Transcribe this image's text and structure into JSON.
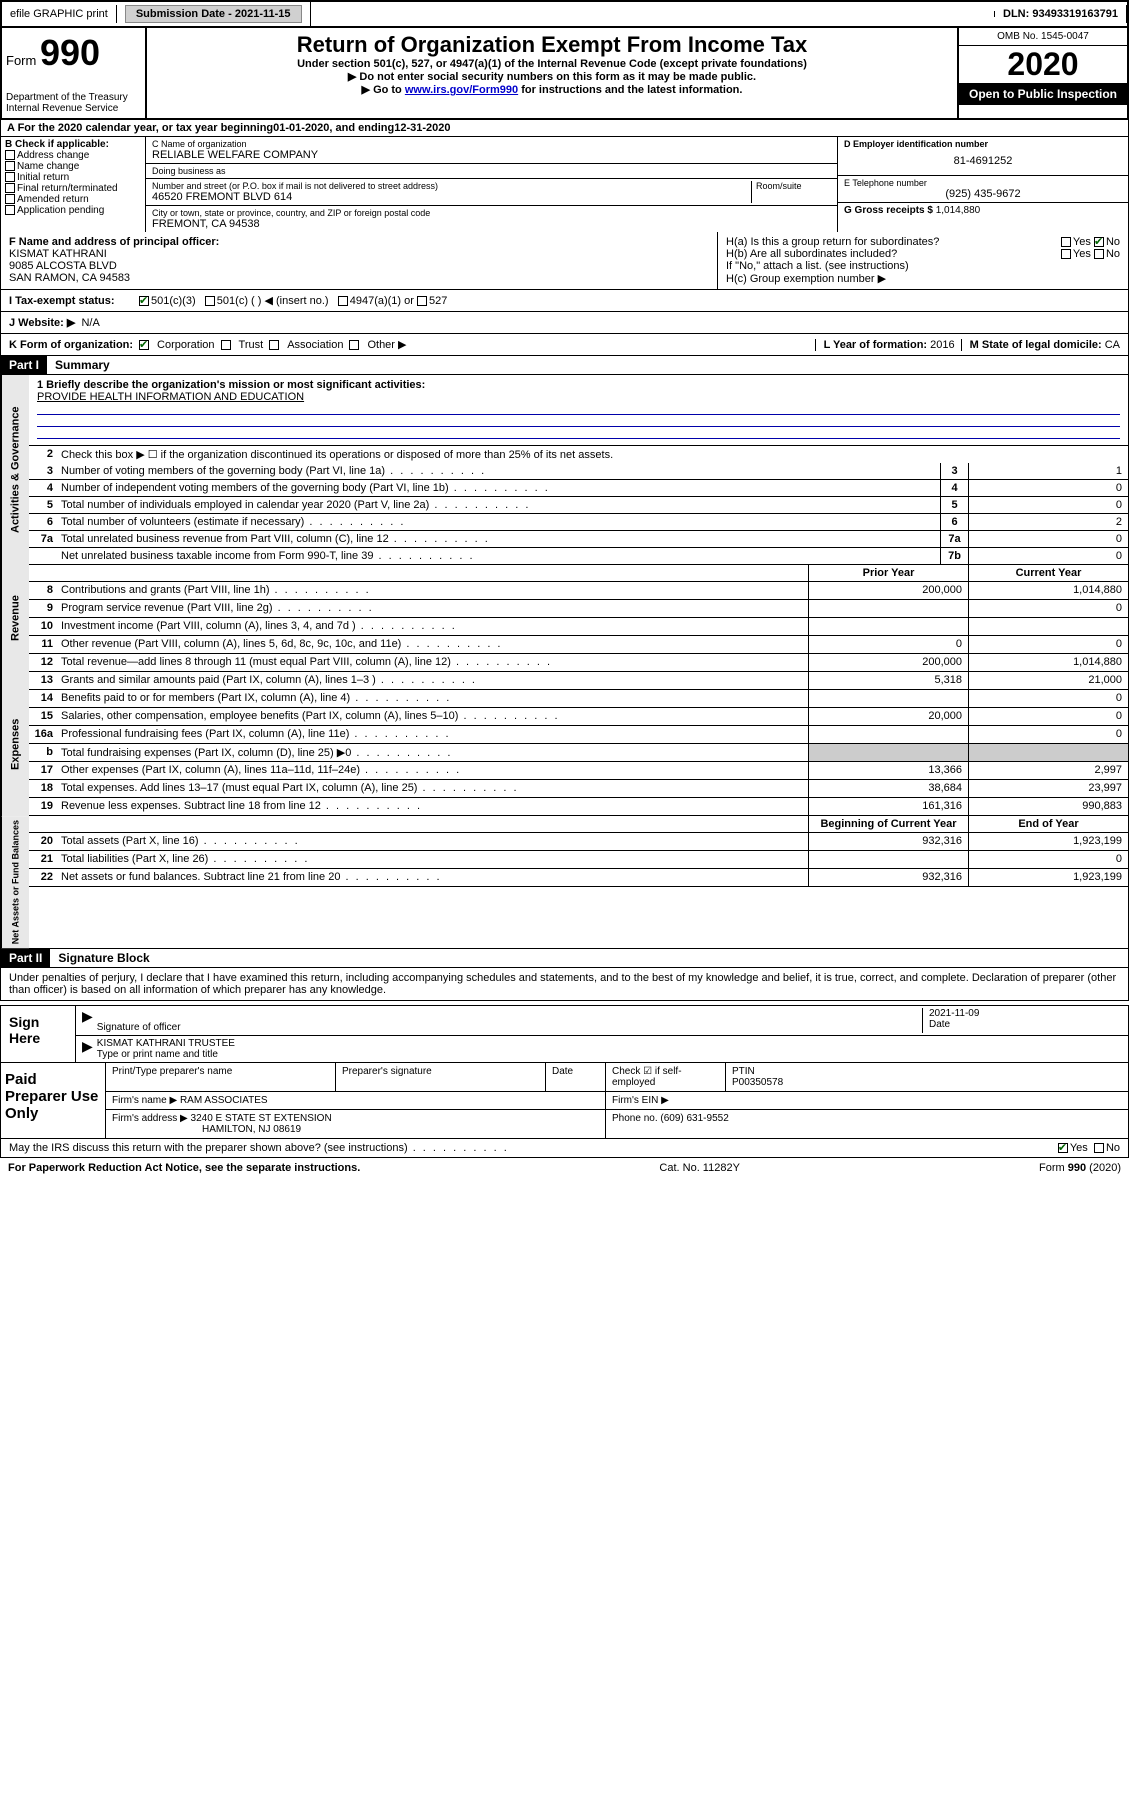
{
  "topbar": {
    "efile": "efile GRAPHIC print",
    "submission_label": "Submission Date - ",
    "submission_date": "2021-11-15",
    "dln_label": "DLN: ",
    "dln": "93493319163791"
  },
  "header": {
    "form_prefix": "Form",
    "form_num": "990",
    "dept": "Department of the Treasury",
    "irs": "Internal Revenue Service",
    "title": "Return of Organization Exempt From Income Tax",
    "sub1": "Under section 501(c), 527, or 4947(a)(1) of the Internal Revenue Code (except private foundations)",
    "sub2": "▶ Do not enter social security numbers on this form as it may be made public.",
    "sub3_pre": "▶ Go to ",
    "sub3_link": "www.irs.gov/Form990",
    "sub3_post": " for instructions and the latest information.",
    "omb": "OMB No. 1545-0047",
    "year": "2020",
    "open": "Open to Public Inspection"
  },
  "period": {
    "label_a": "A For the 2020 calendar year, or tax year beginning ",
    "begin": "01-01-2020",
    "mid": " , and ending ",
    "end": "12-31-2020"
  },
  "boxB": {
    "hdr": "B Check if applicable:",
    "opts": [
      "Address change",
      "Name change",
      "Initial return",
      "Final return/terminated",
      "Amended return",
      "Application pending"
    ]
  },
  "boxC": {
    "name_lbl": "C Name of organization",
    "name": "RELIABLE WELFARE COMPANY",
    "dba_lbl": "Doing business as",
    "dba": "",
    "addr_lbl": "Number and street (or P.O. box if mail is not delivered to street address)",
    "room_lbl": "Room/suite",
    "addr": "46520 FREMONT BLVD 614",
    "city_lbl": "City or town, state or province, country, and ZIP or foreign postal code",
    "city": "FREMONT, CA  94538"
  },
  "boxD": {
    "ein_lbl": "D Employer identification number",
    "ein": "81-4691252",
    "phone_lbl": "E Telephone number",
    "phone": "(925) 435-9672",
    "gross_lbl": "G Gross receipts $ ",
    "gross": "1,014,880"
  },
  "officer": {
    "lbl": "F Name and address of principal officer:",
    "name": "KISMAT KATHRANI",
    "addr1": "9085 ALCOSTA BLVD",
    "addr2": "SAN RAMON, CA  94583"
  },
  "boxH": {
    "ha": "H(a)  Is this a group return for subordinates?",
    "hb": "H(b)  Are all subordinates included?",
    "hb_note": "If \"No,\" attach a list. (see instructions)",
    "hc": "H(c)  Group exemption number ▶",
    "yes": "Yes",
    "no": "No"
  },
  "lineI": {
    "lbl": "I   Tax-exempt status:",
    "o1": "501(c)(3)",
    "o2": "501(c) (  ) ◀ (insert no.)",
    "o3": "4947(a)(1) or",
    "o4": "527"
  },
  "lineJ": {
    "lbl": "J   Website: ▶",
    "val": "N/A"
  },
  "lineK": {
    "lbl": "K Form of organization:",
    "opts": [
      "Corporation",
      "Trust",
      "Association",
      "Other ▶"
    ],
    "yof_lbl": "L Year of formation: ",
    "yof": "2016",
    "state_lbl": "M State of legal domicile: ",
    "state": "CA"
  },
  "part1": {
    "hdr": "Part I",
    "title": "Summary"
  },
  "summary": {
    "q1_lbl": "1  Briefly describe the organization's mission or most significant activities:",
    "q1_val": "PROVIDE HEALTH INFORMATION AND EDUCATION",
    "q2": "Check this box ▶ ☐ if the organization discontinued its operations or disposed of more than 25% of its net assets.",
    "rows": [
      {
        "n": "3",
        "t": "Number of voting members of the governing body (Part VI, line 1a)",
        "b": "3",
        "v": "1"
      },
      {
        "n": "4",
        "t": "Number of independent voting members of the governing body (Part VI, line 1b)",
        "b": "4",
        "v": "0"
      },
      {
        "n": "5",
        "t": "Total number of individuals employed in calendar year 2020 (Part V, line 2a)",
        "b": "5",
        "v": "0"
      },
      {
        "n": "6",
        "t": "Total number of volunteers (estimate if necessary)",
        "b": "6",
        "v": "2"
      },
      {
        "n": "7a",
        "t": "Total unrelated business revenue from Part VIII, column (C), line 12",
        "b": "7a",
        "v": "0"
      },
      {
        "n": "",
        "t": "Net unrelated business taxable income from Form 990-T, line 39",
        "b": "7b",
        "v": "0"
      }
    ]
  },
  "fin": {
    "hdr_prior": "Prior Year",
    "hdr_curr": "Current Year",
    "hdr_boy": "Beginning of Current Year",
    "hdr_eoy": "End of Year",
    "revenue": [
      {
        "n": "8",
        "t": "Contributions and grants (Part VIII, line 1h)",
        "p": "200,000",
        "c": "1,014,880"
      },
      {
        "n": "9",
        "t": "Program service revenue (Part VIII, line 2g)",
        "p": "",
        "c": "0"
      },
      {
        "n": "10",
        "t": "Investment income (Part VIII, column (A), lines 3, 4, and 7d )",
        "p": "",
        "c": ""
      },
      {
        "n": "11",
        "t": "Other revenue (Part VIII, column (A), lines 5, 6d, 8c, 9c, 10c, and 11e)",
        "p": "0",
        "c": "0"
      },
      {
        "n": "12",
        "t": "Total revenue—add lines 8 through 11 (must equal Part VIII, column (A), line 12)",
        "p": "200,000",
        "c": "1,014,880"
      }
    ],
    "expenses": [
      {
        "n": "13",
        "t": "Grants and similar amounts paid (Part IX, column (A), lines 1–3 )",
        "p": "5,318",
        "c": "21,000"
      },
      {
        "n": "14",
        "t": "Benefits paid to or for members (Part IX, column (A), line 4)",
        "p": "",
        "c": "0"
      },
      {
        "n": "15",
        "t": "Salaries, other compensation, employee benefits (Part IX, column (A), lines 5–10)",
        "p": "20,000",
        "c": "0"
      },
      {
        "n": "16a",
        "t": "Professional fundraising fees (Part IX, column (A), line 11e)",
        "p": "",
        "c": "0"
      },
      {
        "n": "b",
        "t": "Total fundraising expenses (Part IX, column (D), line 25) ▶0",
        "p": "shade",
        "c": "shade"
      },
      {
        "n": "17",
        "t": "Other expenses (Part IX, column (A), lines 11a–11d, 11f–24e)",
        "p": "13,366",
        "c": "2,997"
      },
      {
        "n": "18",
        "t": "Total expenses. Add lines 13–17 (must equal Part IX, column (A), line 25)",
        "p": "38,684",
        "c": "23,997"
      },
      {
        "n": "19",
        "t": "Revenue less expenses. Subtract line 18 from line 12",
        "p": "161,316",
        "c": "990,883"
      }
    ],
    "netassets": [
      {
        "n": "20",
        "t": "Total assets (Part X, line 16)",
        "p": "932,316",
        "c": "1,923,199"
      },
      {
        "n": "21",
        "t": "Total liabilities (Part X, line 26)",
        "p": "",
        "c": "0"
      },
      {
        "n": "22",
        "t": "Net assets or fund balances. Subtract line 21 from line 20",
        "p": "932,316",
        "c": "1,923,199"
      }
    ]
  },
  "vtabs": {
    "gov": "Activities & Governance",
    "rev": "Revenue",
    "exp": "Expenses",
    "net": "Net Assets or Fund Balances"
  },
  "part2": {
    "hdr": "Part II",
    "title": "Signature Block"
  },
  "perjury": "Under penalties of perjury, I declare that I have examined this return, including accompanying schedules and statements, and to the best of my knowledge and belief, it is true, correct, and complete. Declaration of preparer (other than officer) is based on all information of which preparer has any knowledge.",
  "sign": {
    "here": "Sign Here",
    "sig_lbl": "Signature of officer",
    "date_lbl": "Date",
    "date": "2021-11-09",
    "name": "KISMAT KATHRANI  TRUSTEE",
    "name_lbl": "Type or print name and title"
  },
  "prep": {
    "lbl": "Paid Preparer Use Only",
    "r1": {
      "c1": "Print/Type preparer's name",
      "c2": "Preparer's signature",
      "c3": "Date",
      "c4_lbl": "Check ☑ if self-employed",
      "c5_lbl": "PTIN",
      "c5": "P00350578"
    },
    "r2": {
      "c1": "Firm's name    ▶",
      "c1v": "RAM ASSOCIATES",
      "c2": "Firm's EIN ▶"
    },
    "r3": {
      "c1": "Firm's address ▶",
      "c1v": "3240 E STATE ST EXTENSION",
      "c2": "Phone no. (609) 631-9552"
    },
    "r3b": "HAMILTON, NJ  08619"
  },
  "discuss": {
    "q": "May the IRS discuss this return with the preparer shown above? (see instructions)",
    "yes": "Yes",
    "no": "No"
  },
  "footer": {
    "left": "For Paperwork Reduction Act Notice, see the separate instructions.",
    "mid": "Cat. No. 11282Y",
    "right": "Form 990 (2020)"
  }
}
